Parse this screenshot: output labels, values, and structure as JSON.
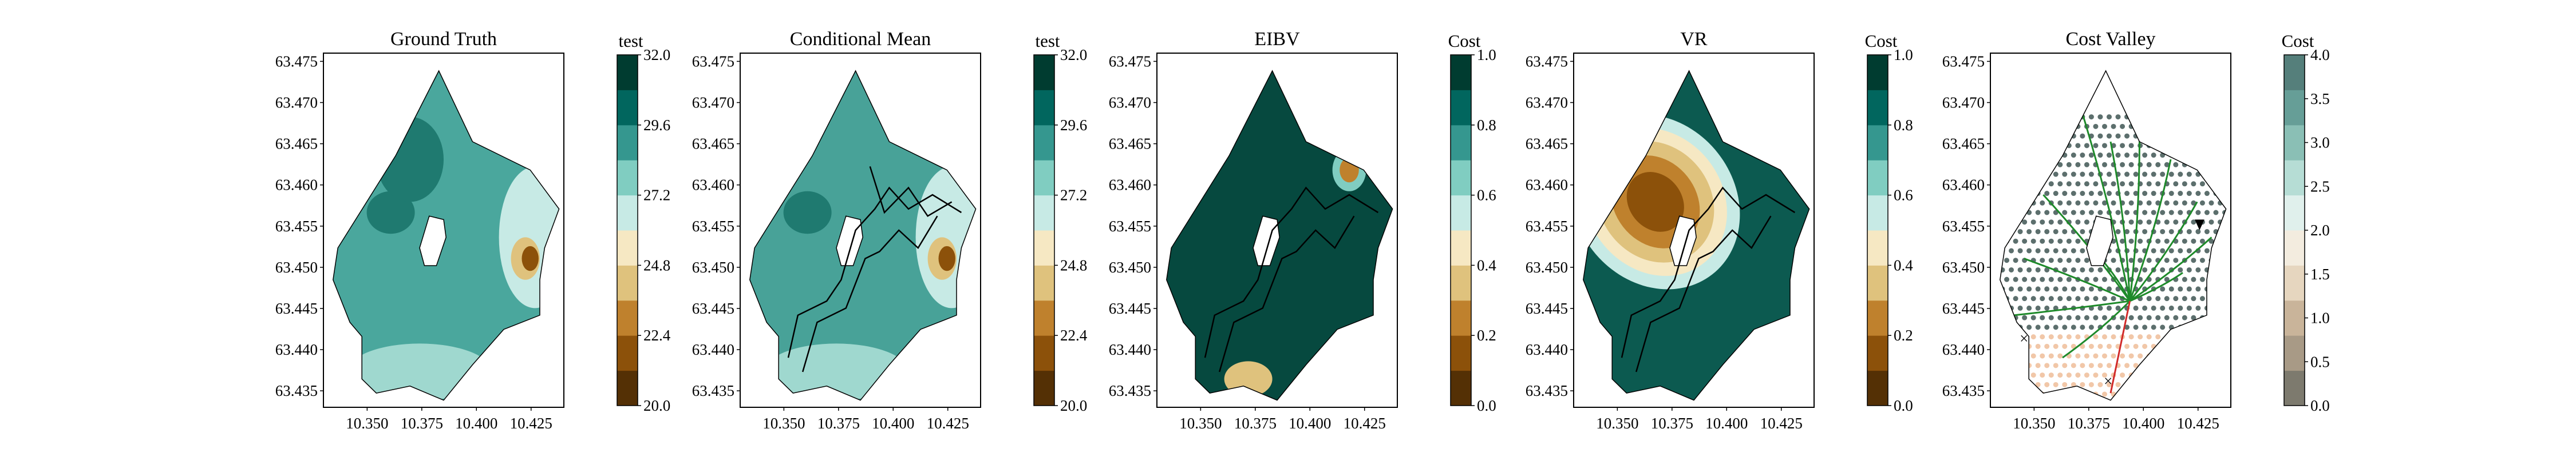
{
  "colors": {
    "brbg": [
      "#543005",
      "#8c510a",
      "#bf812d",
      "#dfc27d",
      "#f6e8c3",
      "#c7eae5",
      "#80cdc1",
      "#35978f",
      "#01665e",
      "#003c30"
    ],
    "ground_fill": "#4aa79d",
    "ground_dark": "#1f7a70",
    "ground_light": "#9fd8cf",
    "mean_fill": "#48a298",
    "eibv_fill": "#06493f",
    "vr_fill": "#0c5a50",
    "cost_fill": "#ffffff",
    "path_green": "#1e8a2a",
    "dot_grey": "#5c6f6d",
    "dot_peach": "#f1c7a8",
    "line_black": "#000000"
  },
  "chart_data": [
    {
      "type": "heatmap",
      "title": "Ground Truth",
      "colorbar_title": "test",
      "colorbar_ticks": [
        "32.0",
        "29.6",
        "27.2",
        "24.8",
        "22.4",
        "20.0"
      ],
      "colorbar_range": [
        20.0,
        32.0
      ],
      "xticks": [
        "10.350",
        "10.375",
        "10.400",
        "10.425"
      ],
      "yticks": [
        "63.475",
        "63.470",
        "63.465",
        "63.460",
        "63.455",
        "63.450",
        "63.445",
        "63.440",
        "63.435"
      ],
      "xlim": [
        10.33,
        10.44
      ],
      "ylim": [
        63.433,
        63.476
      ],
      "grid": false
    },
    {
      "type": "heatmap",
      "title": "Conditional Mean",
      "colorbar_title": "test",
      "colorbar_ticks": [
        "32.0",
        "29.6",
        "27.2",
        "24.8",
        "22.4",
        "20.0"
      ],
      "colorbar_range": [
        20.0,
        32.0
      ],
      "xticks": [
        "10.350",
        "10.375",
        "10.400",
        "10.425"
      ],
      "yticks": [
        "63.475",
        "63.470",
        "63.465",
        "63.460",
        "63.455",
        "63.450",
        "63.445",
        "63.440",
        "63.435"
      ],
      "xlim": [
        10.33,
        10.44
      ],
      "ylim": [
        63.433,
        63.476
      ],
      "grid": false
    },
    {
      "type": "heatmap",
      "title": "EIBV",
      "colorbar_title": "Cost",
      "colorbar_ticks": [
        "1.0",
        "0.8",
        "0.6",
        "0.4",
        "0.2",
        "0.0"
      ],
      "colorbar_range": [
        0.0,
        1.0
      ],
      "xticks": [
        "10.350",
        "10.375",
        "10.400",
        "10.425"
      ],
      "yticks": [
        "63.475",
        "63.470",
        "63.465",
        "63.460",
        "63.455",
        "63.450",
        "63.445",
        "63.440",
        "63.435"
      ],
      "xlim": [
        10.33,
        10.44
      ],
      "ylim": [
        63.433,
        63.476
      ],
      "grid": false
    },
    {
      "type": "heatmap",
      "title": "VR",
      "colorbar_title": "Cost",
      "colorbar_ticks": [
        "1.0",
        "0.8",
        "0.6",
        "0.4",
        "0.2",
        "0.0"
      ],
      "colorbar_range": [
        0.0,
        1.0
      ],
      "xticks": [
        "10.350",
        "10.375",
        "10.400",
        "10.425"
      ],
      "yticks": [
        "63.475",
        "63.470",
        "63.465",
        "63.460",
        "63.455",
        "63.450",
        "63.445",
        "63.440",
        "63.435"
      ],
      "xlim": [
        10.33,
        10.44
      ],
      "ylim": [
        63.433,
        63.476
      ],
      "grid": false
    },
    {
      "type": "heatmap",
      "title": "Cost Valley",
      "colorbar_title": "Cost",
      "colorbar_ticks": [
        "4.0",
        "3.5",
        "3.0",
        "2.5",
        "2.0",
        "1.5",
        "1.0",
        "0.5",
        "0.0"
      ],
      "colorbar_range": [
        0.0,
        4.0
      ],
      "xticks": [
        "10.350",
        "10.375",
        "10.400",
        "10.425"
      ],
      "yticks": [
        "63.475",
        "63.470",
        "63.465",
        "63.460",
        "63.455",
        "63.450",
        "63.445",
        "63.440",
        "63.435"
      ],
      "xlim": [
        10.33,
        10.44
      ],
      "ylim": [
        63.433,
        63.476
      ],
      "grid": false
    }
  ]
}
